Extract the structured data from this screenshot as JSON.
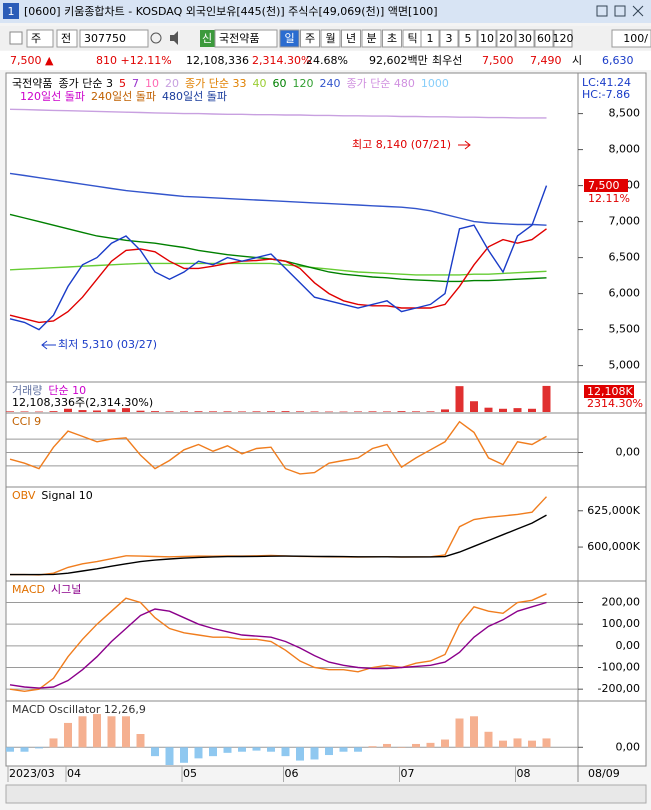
{
  "window": {
    "badge": "1",
    "title": "[0600] 키움종합차트 - KOSDAQ 외국인보유[445(천)] 주식수[49,069(천)] 액면[100]"
  },
  "toolbar": {
    "period": "주",
    "prev": "전",
    "code": "307750",
    "new": "신",
    "name": "국전약품",
    "periods": [
      "일",
      "주",
      "월",
      "년",
      "분",
      "초",
      "틱"
    ],
    "intervals": [
      "1",
      "3",
      "5",
      "10",
      "20",
      "30",
      "60",
      "120"
    ],
    "count": "100/"
  },
  "info": {
    "price": "7,500 ▲",
    "change": "810 +12.11%",
    "volume": "12,108,336",
    "volume_ratio": "2,314.30%",
    "turnover": "24.68%",
    "amount": "92,602백만",
    "best_label": "최우선",
    "ask": "7,500",
    "bid": "7,490",
    "open_label": "시",
    "open": "6,630"
  },
  "chart_data": [
    {
      "type": "price",
      "categories": [
        "2023/03",
        null,
        null,
        null,
        "04",
        null,
        null,
        null,
        null,
        null,
        null,
        null,
        "05",
        null,
        null,
        null,
        null,
        null,
        null,
        "06",
        null,
        null,
        null,
        null,
        null,
        null,
        null,
        "07",
        null,
        null,
        null,
        null,
        null,
        null,
        null,
        "08",
        null,
        null
      ],
      "axis_end": "08/09",
      "ylim": [
        4800,
        8800
      ],
      "yticks": [
        {
          "value": 5000,
          "label": "5,000"
        },
        {
          "value": 5500,
          "label": "5,500"
        },
        {
          "value": 6000,
          "label": "6,000"
        },
        {
          "value": 6500,
          "label": "6,500"
        },
        {
          "value": 7000,
          "label": "7,000"
        },
        {
          "value": 7500,
          "label": "7,500"
        },
        {
          "value": 8000,
          "label": "8,000"
        },
        {
          "value": 8500,
          "label": "8,500"
        }
      ],
      "grid": false,
      "series": [
        {
          "color": "#c8a0e0",
          "values": [
            8560,
            8555,
            8550,
            8545,
            8540,
            8535,
            8530,
            8525,
            8520,
            8515,
            8510,
            8505,
            8500,
            8500,
            8495,
            8490,
            8490,
            8485,
            8485,
            8480,
            8480,
            8475,
            8475,
            8470,
            8470,
            8465,
            8465,
            8460,
            8460,
            8455,
            8455,
            8450,
            8450,
            8445,
            8445,
            8440,
            8440,
            8440
          ]
        },
        {
          "color": "#3355cc",
          "values": [
            7670,
            7640,
            7610,
            7580,
            7550,
            7520,
            7490,
            7460,
            7430,
            7410,
            7390,
            7370,
            7350,
            7340,
            7330,
            7320,
            7310,
            7300,
            7290,
            7280,
            7270,
            7260,
            7250,
            7240,
            7230,
            7220,
            7210,
            7200,
            7180,
            7150,
            7100,
            7050,
            7000,
            6980,
            6970,
            6960,
            6960,
            6950
          ]
        },
        {
          "color": "#66cc33",
          "values": [
            6330,
            6340,
            6350,
            6360,
            6370,
            6380,
            6390,
            6400,
            6410,
            6420,
            6420,
            6420,
            6420,
            6420,
            6420,
            6420,
            6420,
            6420,
            6420,
            6400,
            6380,
            6360,
            6340,
            6320,
            6300,
            6290,
            6280,
            6270,
            6260,
            6260,
            6260,
            6260,
            6270,
            6270,
            6280,
            6290,
            6300,
            6310
          ]
        },
        {
          "color": "#008000",
          "values": [
            7100,
            7050,
            7000,
            6950,
            6900,
            6850,
            6800,
            6770,
            6740,
            6720,
            6700,
            6670,
            6640,
            6600,
            6570,
            6540,
            6520,
            6500,
            6480,
            6450,
            6400,
            6350,
            6300,
            6270,
            6250,
            6230,
            6220,
            6200,
            6190,
            6180,
            6170,
            6170,
            6180,
            6180,
            6190,
            6200,
            6210,
            6220
          ]
        },
        {
          "color": "#e00000",
          "values": [
            5700,
            5650,
            5600,
            5620,
            5750,
            5950,
            6200,
            6450,
            6600,
            6620,
            6580,
            6450,
            6350,
            6350,
            6380,
            6420,
            6450,
            6460,
            6480,
            6450,
            6350,
            6150,
            6000,
            5900,
            5850,
            5830,
            5830,
            5800,
            5800,
            5800,
            5850,
            6100,
            6400,
            6650,
            6750,
            6700,
            6750,
            6900
          ]
        },
        {
          "color": "#1a3cc8",
          "values": [
            5650,
            5600,
            5500,
            5700,
            6100,
            6400,
            6500,
            6700,
            6800,
            6600,
            6300,
            6200,
            6300,
            6450,
            6400,
            6500,
            6450,
            6500,
            6550,
            6350,
            6150,
            5950,
            5900,
            5850,
            5800,
            5850,
            5900,
            5750,
            5800,
            5850,
            6000,
            6900,
            6950,
            6600,
            6300,
            6800,
            6950,
            7500
          ]
        }
      ],
      "legend": [
        {
          "label": "국전약품",
          "color": "#000000"
        },
        {
          "label": "종가 단순 3",
          "color": "#000000"
        },
        {
          "label": "5",
          "color": "#e00000"
        },
        {
          "label": "7",
          "color": "#9932cc"
        },
        {
          "label": "10",
          "color": "#ff69b4"
        },
        {
          "label": "20",
          "color": "#c8a0e0"
        },
        {
          "label": "종가 단순 33",
          "color": "#e08000"
        },
        {
          "label": "40",
          "color": "#9acd32"
        },
        {
          "label": "60",
          "color": "#008000"
        },
        {
          "label": "120",
          "color": "#32a032"
        },
        {
          "label": "240",
          "color": "#3355cc"
        },
        {
          "label": "종가 단순 480",
          "color": "#d090e0"
        },
        {
          "label": "1000",
          "color": "#87cefa"
        }
      ],
      "legend2": [
        {
          "label": "120일선 돌파",
          "color": "#cc00cc"
        },
        {
          "label": "240일선 돌파",
          "color": "#c06000"
        },
        {
          "label": "480일선 돌파",
          "color": "#1a3c9c"
        }
      ],
      "high": "최고 8,140 (07/21)",
      "low": "최저 5,310 (03/27)",
      "last_price": "7,500",
      "last_change": "12.11%",
      "lc": "LC:41.24",
      "hc": "HC:-7.86"
    },
    {
      "type": "bar",
      "ylim": [
        0,
        13000
      ],
      "series": [
        {
          "color": "#e03030",
          "values": [
            300,
            250,
            200,
            400,
            1500,
            900,
            700,
            1200,
            1800,
            600,
            400,
            300,
            300,
            350,
            300,
            300,
            250,
            300,
            350,
            400,
            300,
            250,
            200,
            200,
            250,
            300,
            250,
            400,
            300,
            300,
            1200,
            12000,
            5000,
            2000,
            1500,
            1800,
            1500,
            12108
          ]
        }
      ],
      "legend": [
        {
          "label": "거래량",
          "color": "#6070a0"
        },
        {
          "label": "단순 10",
          "color": "#cc00cc"
        }
      ],
      "volume_text": "12,108,336주(2,314.30%)",
      "last_volume": "12,108K",
      "last_ratio": "2314.30%"
    },
    {
      "type": "line",
      "ylim": [
        -250,
        280
      ],
      "yticks": [
        {
          "value": 0,
          "label": "0,00"
        }
      ],
      "ref_lines": [
        100,
        -100
      ],
      "grid": true,
      "series": [
        {
          "color": "#f07d1e",
          "values": [
            -50,
            -80,
            -120,
            40,
            160,
            120,
            80,
            100,
            110,
            -20,
            -120,
            -60,
            20,
            60,
            10,
            50,
            -10,
            30,
            40,
            -120,
            -160,
            -150,
            -80,
            -60,
            -40,
            30,
            60,
            -110,
            -40,
            20,
            80,
            230,
            150,
            -40,
            -90,
            80,
            60,
            120
          ]
        }
      ],
      "legend": [
        {
          "label": "CCI 9",
          "color": "#c06000"
        }
      ]
    },
    {
      "type": "line",
      "ylim": [
        578000,
        640000
      ],
      "yticks": [
        {
          "value": 600000,
          "label": "600,000K"
        },
        {
          "value": 625000,
          "label": "625,000K"
        }
      ],
      "grid": false,
      "series": [
        {
          "color": "#f07d1e",
          "values": [
            581000,
            581000,
            580800,
            582000,
            586000,
            588500,
            590000,
            592000,
            594000,
            593800,
            593500,
            593300,
            593600,
            593800,
            593700,
            593900,
            593800,
            594000,
            594200,
            593900,
            593600,
            593400,
            593300,
            593200,
            593100,
            593200,
            593300,
            593100,
            593200,
            593300,
            594500,
            614000,
            619000,
            620500,
            621500,
            622500,
            624000,
            634700
          ]
        },
        {
          "color": "#000000",
          "values": [
            581000,
            581000,
            581000,
            581200,
            582000,
            583500,
            585000,
            586800,
            588500,
            590000,
            591000,
            591800,
            592400,
            592900,
            593200,
            593400,
            593500,
            593600,
            593700,
            593800,
            593700,
            593600,
            593500,
            593400,
            593300,
            593300,
            593300,
            593200,
            593200,
            593200,
            593400,
            596500,
            600500,
            604500,
            608500,
            612500,
            616500,
            622000
          ]
        }
      ],
      "legend": [
        {
          "label": "OBV",
          "color": "#e07000"
        },
        {
          "label": "Signal 10",
          "color": "#000000"
        }
      ]
    },
    {
      "type": "line",
      "ylim": [
        -250,
        290
      ],
      "yticks": [
        {
          "value": 200,
          "label": "200,00"
        },
        {
          "value": 100,
          "label": "100,00"
        },
        {
          "value": 0,
          "label": "0,00"
        },
        {
          "value": -100,
          "label": "-100,00"
        },
        {
          "value": -200,
          "label": "-200,00"
        }
      ],
      "grid": true,
      "series": [
        {
          "color": "#f07d1e",
          "values": [
            -200,
            -210,
            -200,
            -150,
            -50,
            30,
            100,
            160,
            220,
            200,
            130,
            80,
            60,
            50,
            40,
            40,
            30,
            30,
            20,
            -20,
            -70,
            -100,
            -110,
            -110,
            -120,
            -100,
            -90,
            -100,
            -80,
            -70,
            -40,
            100,
            180,
            160,
            150,
            200,
            210,
            240
          ]
        },
        {
          "color": "#8b008b",
          "values": [
            -180,
            -190,
            -195,
            -190,
            -160,
            -110,
            -50,
            20,
            80,
            140,
            170,
            160,
            130,
            100,
            80,
            65,
            50,
            45,
            40,
            20,
            -10,
            -45,
            -75,
            -90,
            -100,
            -105,
            -105,
            -100,
            -95,
            -90,
            -75,
            -30,
            40,
            90,
            120,
            160,
            180,
            200
          ]
        }
      ],
      "legend": [
        {
          "label": "MACD",
          "color": "#e07000"
        },
        {
          "label": "시그널",
          "color": "#8b008b"
        }
      ]
    },
    {
      "type": "bar",
      "ylim": [
        -80,
        200
      ],
      "yticks": [
        {
          "value": 0,
          "label": "0,00"
        }
      ],
      "grid": true,
      "series": [
        {
          "color": "#f5b090",
          "negative_color": "#8fc8f0",
          "values": [
            -20,
            -20,
            -5,
            40,
            110,
            140,
            150,
            140,
            140,
            60,
            -40,
            -80,
            -70,
            -50,
            -40,
            -25,
            -20,
            -15,
            -20,
            -40,
            -60,
            -55,
            -35,
            -20,
            -20,
            5,
            15,
            0,
            15,
            20,
            35,
            130,
            140,
            70,
            30,
            40,
            30,
            40
          ]
        }
      ],
      "legend": [
        {
          "label": "MACD Oscillator 12,26,9",
          "color": "#333333"
        }
      ]
    }
  ]
}
